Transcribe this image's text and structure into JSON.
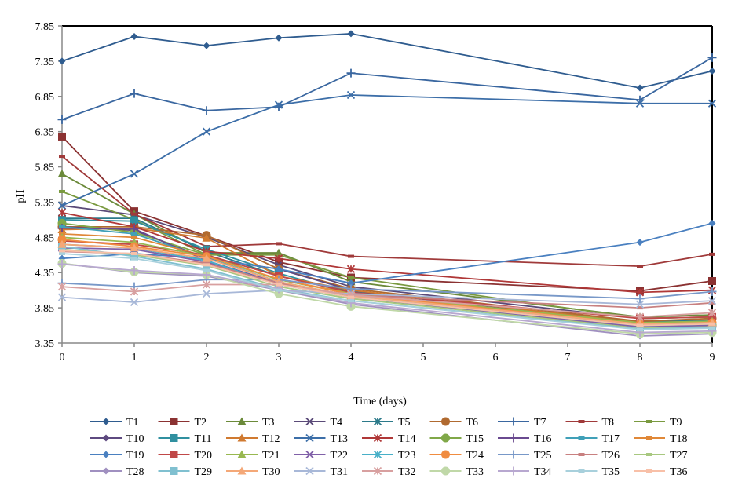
{
  "chart_data": {
    "type": "line",
    "title": "",
    "xlabel": "Time (days)",
    "ylabel": "pH",
    "xlim": [
      0,
      9
    ],
    "ylim": [
      3.35,
      7.85
    ],
    "xticks": [
      "0",
      "1",
      "2",
      "3",
      "4",
      "5",
      "6",
      "7",
      "8",
      "9"
    ],
    "yticks": [
      "3.35",
      "3.85",
      "4.35",
      "4.85",
      "5.35",
      "5.85",
      "6.35",
      "6.85",
      "7.35",
      "7.85"
    ],
    "grid": false,
    "legend_position": "bottom",
    "x": [
      0,
      1,
      2,
      3,
      4,
      8,
      9
    ],
    "series": [
      {
        "name": "T1",
        "color": "#2F5C8F",
        "marker": "diamond",
        "values": [
          7.35,
          7.7,
          7.57,
          7.68,
          7.74,
          6.97,
          7.21
        ]
      },
      {
        "name": "T2",
        "color": "#8B3232",
        "marker": "square",
        "values": [
          6.28,
          5.22,
          4.87,
          4.5,
          4.28,
          4.09,
          4.23
        ]
      },
      {
        "name": "T3",
        "color": "#6B8A3A",
        "marker": "triangle",
        "values": [
          5.75,
          5.18,
          4.63,
          4.63,
          4.22,
          3.72,
          3.75
        ]
      },
      {
        "name": "T4",
        "color": "#5A4A78",
        "marker": "x",
        "values": [
          5.3,
          5.17,
          4.85,
          4.46,
          4.15,
          3.7,
          3.72
        ]
      },
      {
        "name": "T5",
        "color": "#2C7A8A",
        "marker": "star",
        "values": [
          5.12,
          5.12,
          4.65,
          4.3,
          4.08,
          3.65,
          3.68
        ]
      },
      {
        "name": "T6",
        "color": "#B06A30",
        "marker": "circle",
        "values": [
          5.0,
          5.0,
          4.88,
          4.4,
          4.12,
          3.66,
          3.7
        ]
      },
      {
        "name": "T7",
        "color": "#3A67A0",
        "marker": "plus",
        "values": [
          6.52,
          6.89,
          6.65,
          6.7,
          7.18,
          6.8,
          7.4
        ]
      },
      {
        "name": "T8",
        "color": "#A03A3A",
        "marker": "dash",
        "values": [
          6.0,
          5.18,
          4.72,
          4.76,
          4.58,
          4.44,
          4.61
        ]
      },
      {
        "name": "T9",
        "color": "#7A9A40",
        "marker": "dash",
        "values": [
          5.5,
          5.1,
          4.6,
          4.6,
          4.28,
          3.7,
          3.72
        ]
      },
      {
        "name": "T10",
        "color": "#5E4A80",
        "marker": "diamond",
        "values": [
          5.0,
          4.95,
          4.55,
          4.4,
          4.1,
          3.6,
          3.62
        ]
      },
      {
        "name": "T11",
        "color": "#3090A0",
        "marker": "square",
        "values": [
          5.1,
          5.08,
          4.68,
          4.34,
          4.05,
          3.62,
          3.64
        ]
      },
      {
        "name": "T12",
        "color": "#D07A30",
        "marker": "triangle",
        "values": [
          4.96,
          4.98,
          4.84,
          4.3,
          4.1,
          3.64,
          3.66
        ]
      },
      {
        "name": "T13",
        "color": "#3C6EA8",
        "marker": "x",
        "values": [
          5.3,
          5.75,
          6.35,
          6.73,
          6.87,
          6.75,
          6.75
        ]
      },
      {
        "name": "T14",
        "color": "#B03838",
        "marker": "star",
        "values": [
          5.2,
          5.0,
          4.65,
          4.55,
          4.4,
          4.07,
          4.1
        ]
      },
      {
        "name": "T15",
        "color": "#80A848",
        "marker": "circle",
        "values": [
          5.05,
          4.92,
          4.6,
          4.25,
          4.05,
          3.58,
          3.6
        ]
      },
      {
        "name": "T16",
        "color": "#6A4A90",
        "marker": "plus",
        "values": [
          4.98,
          4.97,
          4.52,
          4.2,
          4.0,
          3.56,
          3.58
        ]
      },
      {
        "name": "T17",
        "color": "#40A0B8",
        "marker": "dash",
        "values": [
          5.0,
          4.9,
          4.56,
          4.22,
          4.02,
          3.6,
          3.63
        ]
      },
      {
        "name": "T18",
        "color": "#E08838",
        "marker": "dash",
        "values": [
          4.9,
          4.85,
          4.58,
          4.25,
          4.06,
          3.63,
          3.65
        ]
      },
      {
        "name": "T19",
        "color": "#4A80C0",
        "marker": "diamond",
        "values": [
          4.55,
          4.62,
          4.55,
          4.4,
          4.2,
          4.78,
          5.05
        ]
      },
      {
        "name": "T20",
        "color": "#C04848",
        "marker": "square",
        "values": [
          4.8,
          4.75,
          4.6,
          4.3,
          4.07,
          3.7,
          3.72
        ]
      },
      {
        "name": "T21",
        "color": "#98B850",
        "marker": "triangle",
        "values": [
          4.85,
          4.78,
          4.58,
          4.25,
          4.05,
          3.64,
          3.66
        ]
      },
      {
        "name": "T22",
        "color": "#8060A8",
        "marker": "x",
        "values": [
          4.7,
          4.68,
          4.5,
          4.2,
          4.0,
          3.58,
          3.6
        ]
      },
      {
        "name": "T23",
        "color": "#48B0C8",
        "marker": "star",
        "values": [
          4.75,
          4.7,
          4.52,
          4.18,
          4.0,
          3.6,
          3.62
        ]
      },
      {
        "name": "T24",
        "color": "#F08C40",
        "marker": "circle",
        "values": [
          4.82,
          4.72,
          4.58,
          4.26,
          4.04,
          3.62,
          3.64
        ]
      },
      {
        "name": "T25",
        "color": "#7898C8",
        "marker": "plus",
        "values": [
          4.2,
          4.15,
          4.25,
          4.25,
          4.12,
          3.98,
          4.08
        ]
      },
      {
        "name": "T26",
        "color": "#C88080",
        "marker": "dash",
        "values": [
          4.65,
          4.62,
          4.48,
          4.2,
          4.03,
          3.85,
          3.92
        ]
      },
      {
        "name": "T27",
        "color": "#A8C880",
        "marker": "dash",
        "values": [
          4.68,
          4.6,
          4.45,
          4.15,
          3.98,
          3.56,
          3.58
        ]
      },
      {
        "name": "T28",
        "color": "#A090C0",
        "marker": "diamond",
        "values": [
          4.48,
          4.35,
          4.3,
          4.1,
          3.9,
          3.45,
          3.48
        ]
      },
      {
        "name": "T29",
        "color": "#80C0D0",
        "marker": "square",
        "values": [
          4.72,
          4.58,
          4.4,
          4.12,
          3.95,
          3.55,
          3.57
        ]
      },
      {
        "name": "T30",
        "color": "#F4A878",
        "marker": "triangle",
        "values": [
          4.75,
          4.7,
          4.55,
          4.22,
          4.02,
          3.62,
          3.64
        ]
      },
      {
        "name": "T31",
        "color": "#A8B8D8",
        "marker": "x",
        "values": [
          4.0,
          3.93,
          4.05,
          4.1,
          4.05,
          3.9,
          3.95
        ]
      },
      {
        "name": "T32",
        "color": "#D8A0A0",
        "marker": "star",
        "values": [
          4.15,
          4.08,
          4.18,
          4.18,
          4.03,
          3.72,
          3.78
        ]
      },
      {
        "name": "T33",
        "color": "#C0D8A8",
        "marker": "circle",
        "values": [
          4.48,
          4.36,
          4.32,
          4.05,
          3.87,
          3.48,
          3.5
        ]
      },
      {
        "name": "T34",
        "color": "#B8A8D0",
        "marker": "plus",
        "values": [
          4.47,
          4.38,
          4.32,
          4.12,
          3.92,
          3.5,
          3.52
        ]
      },
      {
        "name": "T35",
        "color": "#A8D0DC",
        "marker": "dash",
        "values": [
          4.62,
          4.55,
          4.38,
          4.1,
          3.95,
          3.54,
          3.56
        ]
      },
      {
        "name": "T36",
        "color": "#F8C0A8",
        "marker": "dash",
        "values": [
          4.66,
          4.62,
          4.46,
          4.18,
          4.0,
          3.6,
          3.62
        ]
      }
    ]
  }
}
